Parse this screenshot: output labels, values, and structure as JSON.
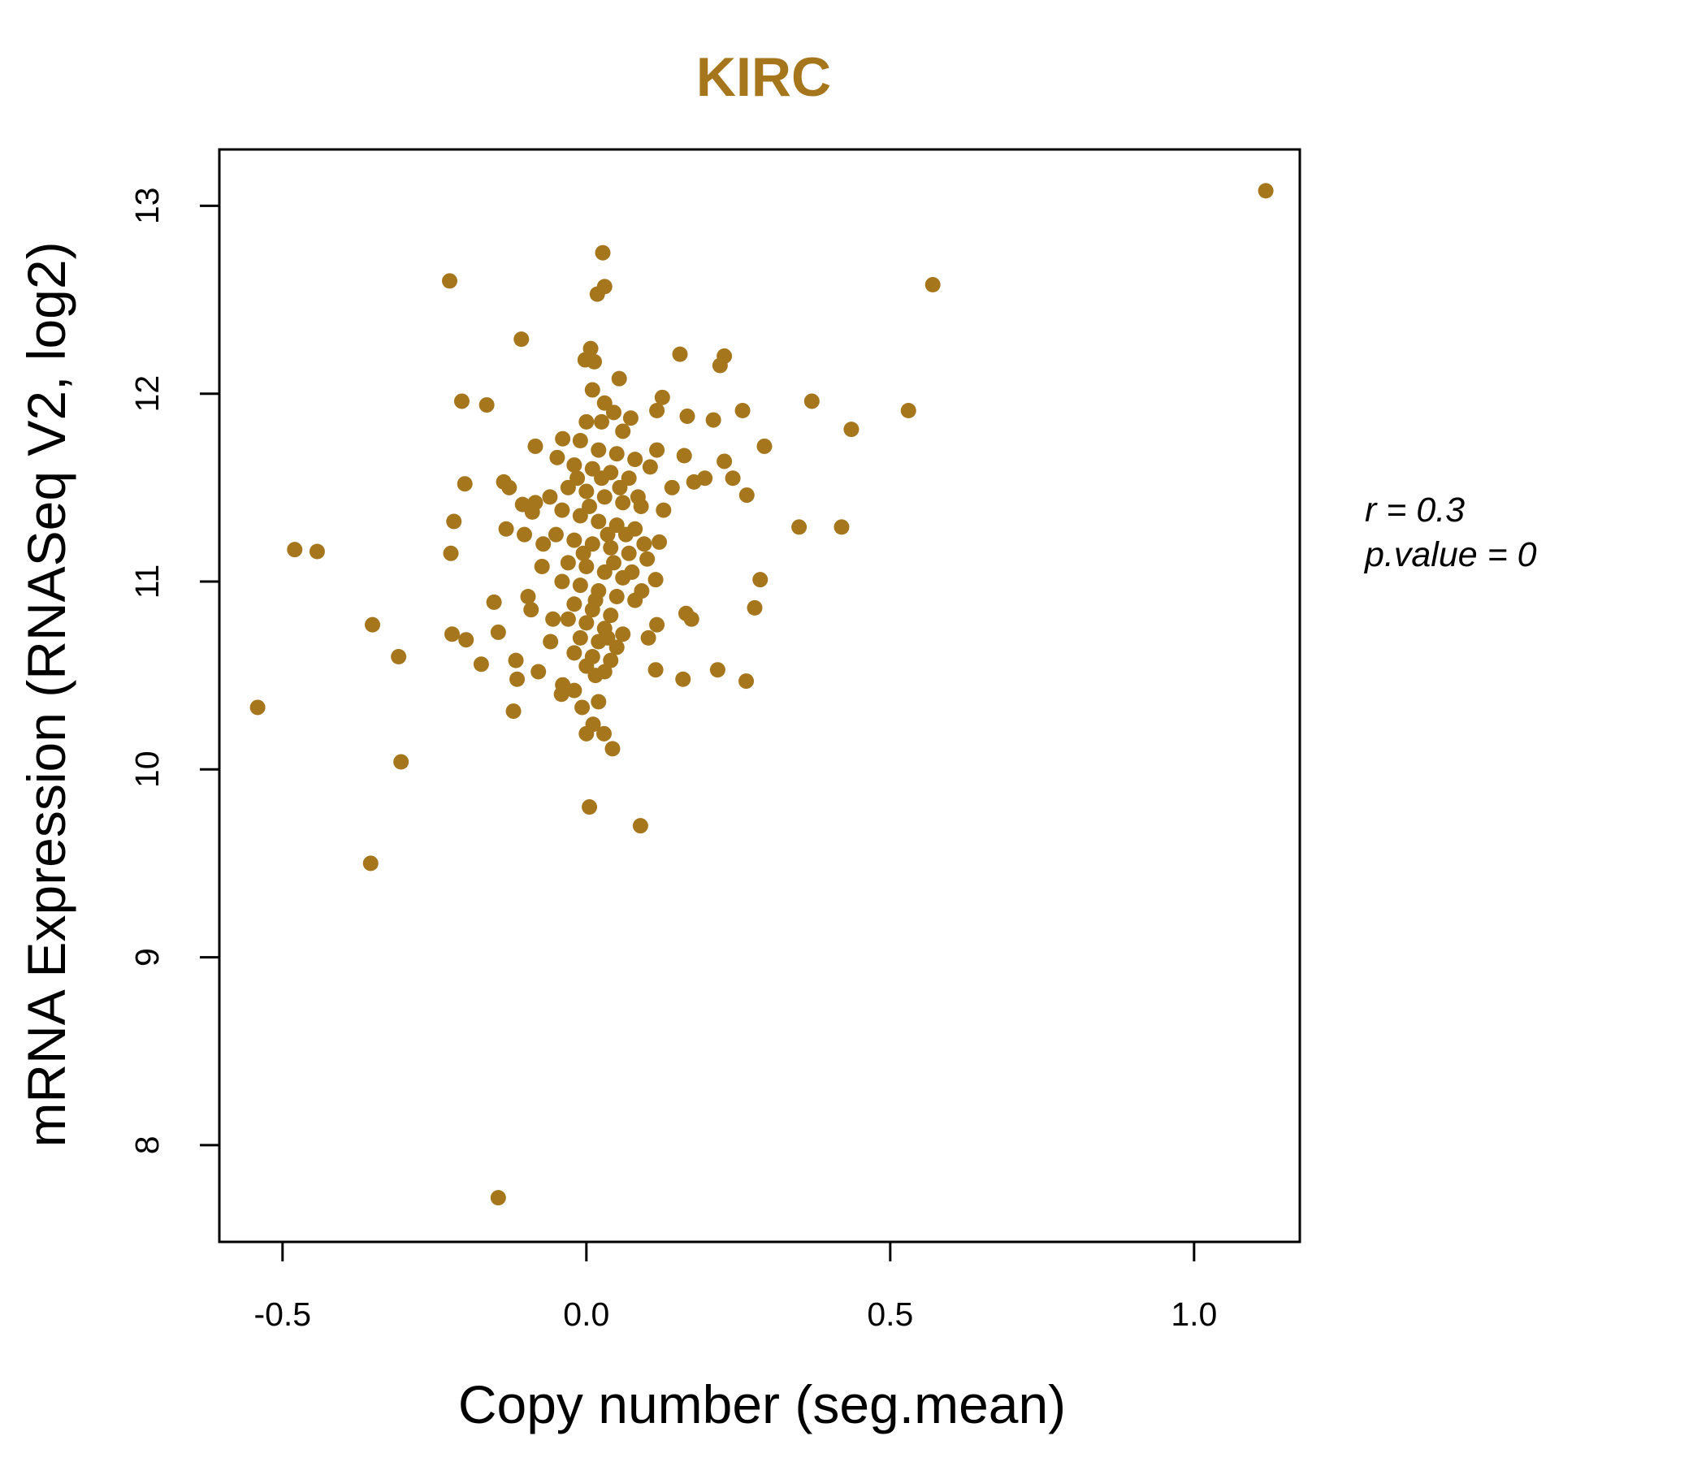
{
  "chart_data": {
    "type": "scatter",
    "title": "KIRC",
    "xlabel": "Copy number (seg.mean)",
    "ylabel": "mRNA Expression (RNASeq V2, log2)",
    "xlim": [
      -0.604,
      1.174
    ],
    "ylim": [
      7.485,
      13.3
    ],
    "xticks": [
      -0.5,
      0.0,
      0.5,
      1.0
    ],
    "xtick_labels": [
      "-0.5",
      "0.0",
      "0.5",
      "1.0"
    ],
    "yticks": [
      8,
      9,
      10,
      11,
      12,
      13
    ],
    "ytick_labels": [
      "8",
      "9",
      "10",
      "11",
      "12",
      "13"
    ],
    "grid": false,
    "point_color": "#A6761D",
    "annotation": {
      "r": "r = 0.3",
      "p": "p.value = 0"
    },
    "points": [
      [
        1.118,
        13.08
      ],
      [
        0.57,
        12.58
      ],
      [
        0.53,
        11.91
      ],
      [
        0.436,
        11.81
      ],
      [
        0.371,
        11.96
      ],
      [
        0.42,
        11.29
      ],
      [
        0.35,
        11.29
      ],
      [
        0.293,
        11.72
      ],
      [
        0.286,
        11.01
      ],
      [
        0.277,
        10.86
      ],
      [
        0.264,
        11.46
      ],
      [
        0.263,
        10.47
      ],
      [
        0.257,
        11.91
      ],
      [
        0.227,
        12.2
      ],
      [
        0.22,
        12.15
      ],
      [
        0.216,
        10.53
      ],
      [
        0.227,
        11.64
      ],
      [
        0.241,
        11.55
      ],
      [
        0.209,
        11.86
      ],
      [
        0.195,
        11.55
      ],
      [
        0.154,
        12.21
      ],
      [
        0.166,
        11.88
      ],
      [
        0.161,
        11.67
      ],
      [
        0.173,
        10.8
      ],
      [
        0.164,
        10.83
      ],
      [
        0.159,
        10.48
      ],
      [
        0.125,
        11.98
      ],
      [
        0.116,
        11.91
      ],
      [
        0.114,
        10.53
      ],
      [
        0.116,
        10.77
      ],
      [
        0.102,
        10.7
      ],
      [
        0.089,
        9.7
      ],
      [
        0.027,
        12.75
      ],
      [
        0.03,
        12.57
      ],
      [
        0.018,
        12.53
      ],
      [
        0.007,
        12.24
      ],
      [
        0.013,
        12.17
      ],
      [
        -0.002,
        12.18
      ],
      [
        0.054,
        12.08
      ],
      [
        0.005,
        9.8
      ],
      [
        0.043,
        10.11
      ],
      [
        0.029,
        10.19
      ],
      [
        0.0,
        10.19
      ],
      [
        0.011,
        10.24
      ],
      [
        0.02,
        10.36
      ],
      [
        -0.007,
        10.33
      ],
      [
        -0.225,
        12.6
      ],
      [
        -0.107,
        12.29
      ],
      [
        -0.205,
        11.96
      ],
      [
        -0.164,
        11.94
      ],
      [
        -0.084,
        11.72
      ],
      [
        -0.2,
        11.52
      ],
      [
        -0.136,
        11.53
      ],
      [
        -0.127,
        11.5
      ],
      [
        -0.105,
        11.41
      ],
      [
        -0.084,
        11.42
      ],
      [
        -0.132,
        11.28
      ],
      [
        -0.102,
        11.25
      ],
      [
        -0.218,
        11.32
      ],
      [
        -0.223,
        11.15
      ],
      [
        -0.48,
        11.17
      ],
      [
        -0.443,
        11.16
      ],
      [
        -0.352,
        10.77
      ],
      [
        -0.309,
        10.6
      ],
      [
        -0.541,
        10.33
      ],
      [
        -0.305,
        10.04
      ],
      [
        -0.355,
        9.5
      ],
      [
        -0.145,
        7.72
      ],
      [
        -0.221,
        10.72
      ],
      [
        -0.198,
        10.69
      ],
      [
        -0.173,
        10.56
      ],
      [
        -0.145,
        10.73
      ],
      [
        -0.152,
        10.89
      ],
      [
        -0.116,
        10.58
      ],
      [
        -0.114,
        10.48
      ],
      [
        -0.12,
        10.31
      ],
      [
        -0.096,
        10.92
      ],
      [
        -0.091,
        10.85
      ],
      [
        -0.079,
        10.52
      ],
      [
        -0.039,
        10.45
      ],
      [
        -0.041,
        10.4
      ],
      [
        -0.02,
        10.42
      ],
      [
        -0.059,
        10.68
      ],
      [
        -0.073,
        11.08
      ],
      [
        -0.071,
        11.2
      ],
      [
        -0.089,
        11.37
      ],
      [
        -0.039,
        11.76
      ],
      [
        -0.048,
        11.66
      ],
      [
        0.073,
        11.87
      ],
      [
        0.116,
        11.7
      ],
      [
        0.127,
        11.38
      ],
      [
        0.12,
        11.21
      ],
      [
        0.114,
        11.01
      ],
      [
        0.091,
        10.95
      ],
      [
        0.105,
        11.61
      ],
      [
        0.141,
        11.5
      ],
      [
        0.177,
        11.53
      ],
      [
        0.01,
        12.02
      ],
      [
        0.03,
        11.95
      ],
      [
        0.045,
        11.9
      ],
      [
        0.0,
        11.85
      ],
      [
        0.06,
        11.8
      ],
      [
        -0.01,
        11.75
      ],
      [
        0.02,
        11.7
      ],
      [
        0.05,
        11.68
      ],
      [
        0.08,
        11.65
      ],
      [
        -0.02,
        11.62
      ],
      [
        0.01,
        11.6
      ],
      [
        0.04,
        11.58
      ],
      [
        0.07,
        11.55
      ],
      [
        -0.03,
        11.5
      ],
      [
        0.0,
        11.48
      ],
      [
        0.03,
        11.45
      ],
      [
        0.06,
        11.42
      ],
      [
        0.09,
        11.4
      ],
      [
        -0.04,
        11.38
      ],
      [
        -0.01,
        11.35
      ],
      [
        0.02,
        11.32
      ],
      [
        0.05,
        11.3
      ],
      [
        0.08,
        11.28
      ],
      [
        -0.05,
        11.25
      ],
      [
        -0.02,
        11.22
      ],
      [
        0.01,
        11.2
      ],
      [
        0.04,
        11.18
      ],
      [
        0.07,
        11.15
      ],
      [
        0.1,
        11.12
      ],
      [
        -0.03,
        11.1
      ],
      [
        0.0,
        11.08
      ],
      [
        0.03,
        11.05
      ],
      [
        0.06,
        11.02
      ],
      [
        -0.04,
        11.0
      ],
      [
        -0.01,
        10.98
      ],
      [
        0.02,
        10.95
      ],
      [
        0.05,
        10.92
      ],
      [
        0.08,
        10.9
      ],
      [
        -0.02,
        10.88
      ],
      [
        0.01,
        10.85
      ],
      [
        0.04,
        10.82
      ],
      [
        -0.03,
        10.8
      ],
      [
        0.0,
        10.78
      ],
      [
        0.03,
        10.75
      ],
      [
        0.06,
        10.72
      ],
      [
        -0.01,
        10.7
      ],
      [
        0.02,
        10.68
      ],
      [
        0.05,
        10.65
      ],
      [
        -0.02,
        10.62
      ],
      [
        0.01,
        10.6
      ],
      [
        0.04,
        10.58
      ],
      [
        0.0,
        10.55
      ],
      [
        0.03,
        10.52
      ],
      [
        0.015,
        10.5
      ],
      [
        0.025,
        11.55
      ],
      [
        0.035,
        11.25
      ],
      [
        0.005,
        11.4
      ],
      [
        0.045,
        11.1
      ],
      [
        0.015,
        10.9
      ],
      [
        0.055,
        11.5
      ],
      [
        -0.005,
        11.15
      ],
      [
        0.025,
        11.85
      ],
      [
        0.035,
        10.7
      ],
      [
        0.065,
        11.25
      ],
      [
        -0.015,
        11.55
      ],
      [
        0.075,
        11.05
      ],
      [
        0.085,
        11.45
      ],
      [
        -0.06,
        11.45
      ],
      [
        -0.055,
        10.8
      ],
      [
        0.095,
        11.2
      ]
    ]
  }
}
